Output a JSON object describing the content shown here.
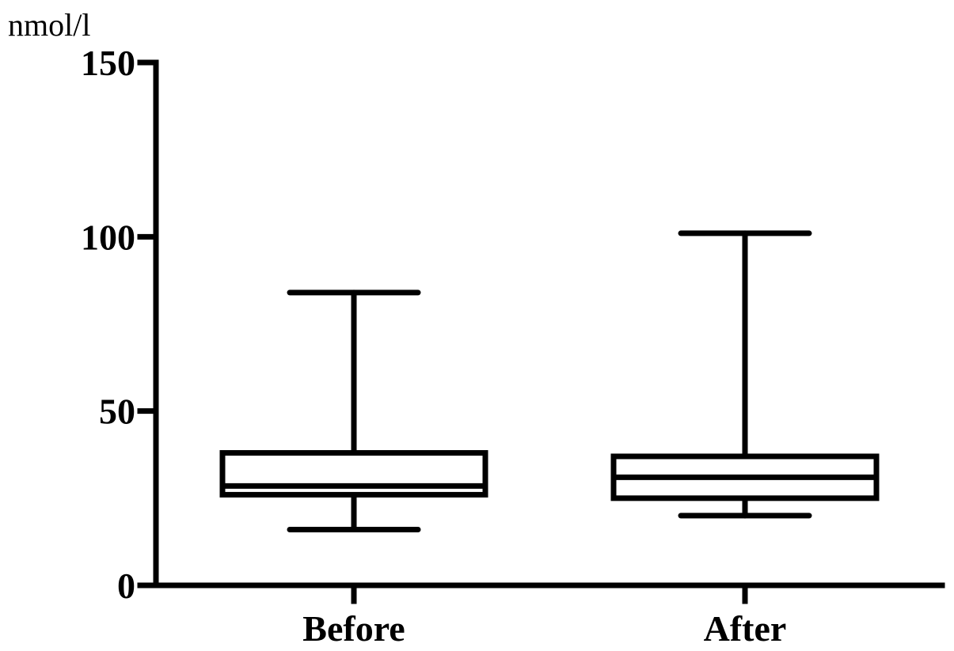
{
  "chart_data": {
    "type": "box",
    "unit_label": "nmol/l",
    "ylim": [
      0,
      150
    ],
    "y_ticks": [
      0,
      50,
      100,
      150
    ],
    "y_tick_labels": [
      "0",
      "50",
      "100",
      "150"
    ],
    "categories": [
      "Before",
      "After"
    ],
    "boxes": [
      {
        "category": "Before",
        "min": 16,
        "q1": 26,
        "median": 28.5,
        "q3": 38,
        "max": 84
      },
      {
        "category": "After",
        "min": 20,
        "q1": 25,
        "median": 31,
        "q3": 37,
        "max": 101
      }
    ],
    "grid": false,
    "legend": "none"
  }
}
